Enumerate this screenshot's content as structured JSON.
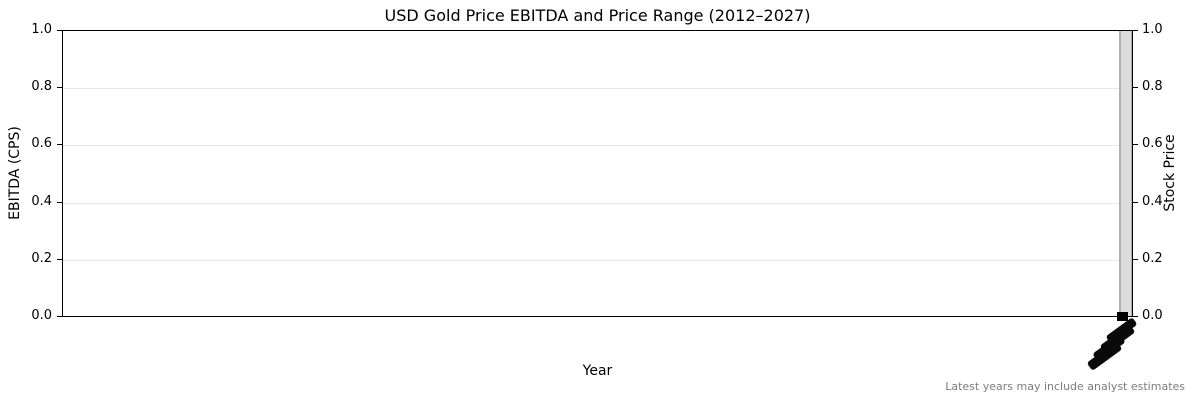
{
  "figure": {
    "title": "USD Gold Price EBITDA and Price Range (2012–2027)",
    "xlabel": "Year",
    "ylabel_left": "EBITDA (CPS)",
    "ylabel_right": "Stock Price",
    "footnote": "Latest years may include analyst estimates"
  },
  "axes": {
    "y_left_ticks": [
      "1.0",
      "0.8",
      "0.6",
      "0.4",
      "0.2",
      "0.0"
    ],
    "y_right_ticks": [
      "1.0",
      "0.8",
      "0.6",
      "0.4",
      "0.2",
      "0.0"
    ]
  },
  "chart_data": {
    "type": "bar",
    "title": "USD Gold Price EBITDA and Price Range (2012–2027)",
    "xlabel": "Year",
    "ylabel": "EBITDA (CPS)",
    "ylabel_right": "Stock Price",
    "ylim_left": [
      0.0,
      1.0
    ],
    "ylim_right": [
      0.0,
      1.0
    ],
    "y_ticks": [
      0.0,
      0.2,
      0.4,
      0.6,
      0.8,
      1.0
    ],
    "x_range_years": "2012–2027",
    "grid": {
      "horizontal": true,
      "vertical": false,
      "color": "#e6e6e6"
    },
    "legend_position": "none",
    "series": [
      {
        "name": "price-range-bar",
        "type": "vertical-range-bar",
        "x": "rightmost edge of axis",
        "low": 0.0,
        "high": 1.0,
        "fill_color": "#dcdcdc",
        "edge_color": "#b0b0b0"
      },
      {
        "name": "close-marker",
        "type": "square-marker",
        "x": "rightmost edge of axis",
        "y": 0.0,
        "color": "#000000"
      }
    ],
    "x_tick_labels": {
      "rotation_deg": 45,
      "overlapping": true,
      "legible": false,
      "position": "clustered below axis at far right"
    },
    "annotation": "Latest years may include analyst estimates"
  },
  "colors": {
    "background": "#ffffff",
    "spine": "#000000",
    "gridline": "#e6e6e6",
    "bar_fill": "#dcdcdc",
    "bar_edge": "#b0b0b0",
    "marker": "#000000",
    "footnote_text": "#7d7d7d"
  }
}
